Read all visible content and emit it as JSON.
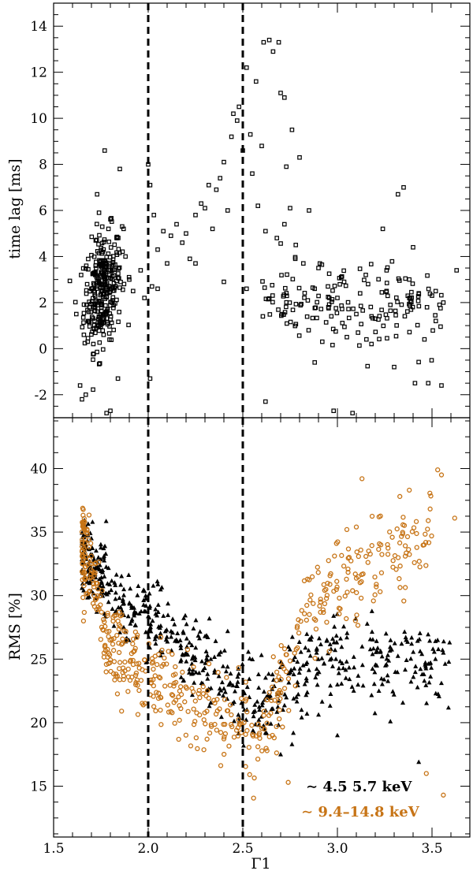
{
  "chart_data": {
    "type": "scatter",
    "x": {
      "label": "Γ1",
      "range": [
        1.5,
        3.7
      ],
      "ticks": [
        1.5,
        2.0,
        2.5,
        3.0,
        3.5
      ],
      "tick_labels": [
        "1.5",
        "2.0",
        "2.5",
        "3.0",
        "3.5"
      ]
    },
    "vlines": [
      2.0,
      2.5
    ],
    "colors": {
      "black": "#000000",
      "orange": "#c77416"
    },
    "panels": [
      {
        "name": "top",
        "ylabel": "time lag [ms]",
        "ylim": [
          -3,
          15
        ],
        "yticks": [
          -2,
          0,
          2,
          4,
          6,
          8,
          10,
          12,
          14
        ],
        "ytick_labels": [
          "-2",
          "0",
          "2",
          "4",
          "6",
          "8",
          "10",
          "12",
          "14"
        ],
        "series": [
          {
            "marker": "square",
            "color": "#000000",
            "points": [
              [
                1.62,
                1.5
              ],
              [
                1.64,
                -1.6
              ],
              [
                1.65,
                -2.2
              ],
              [
                1.66,
                0.6
              ],
              [
                1.67,
                -2.0
              ],
              [
                1.68,
                0.3
              ],
              [
                1.69,
                1.8
              ],
              [
                1.7,
                2.6
              ],
              [
                1.71,
                0.2
              ],
              [
                1.72,
                3.2
              ],
              [
                1.73,
                6.7
              ],
              [
                1.74,
                5.9
              ],
              [
                1.75,
                3.8
              ],
              [
                1.76,
                4.2
              ],
              [
                1.77,
                8.6
              ],
              [
                1.78,
                -2.8
              ],
              [
                1.79,
                5.2
              ],
              [
                1.8,
                -2.7
              ],
              [
                1.84,
                -1.3
              ],
              [
                1.85,
                7.8
              ],
              [
                1.87,
                5.2
              ],
              [
                1.88,
                4.0
              ],
              [
                1.9,
                3.0
              ],
              [
                1.92,
                2.5
              ],
              [
                1.96,
                3.4
              ],
              [
                1.98,
                2.2
              ],
              [
                2.01,
                7.1
              ],
              [
                2.03,
                5.8
              ],
              [
                2.05,
                4.3
              ],
              [
                2.08,
                5.1
              ],
              [
                2.1,
                3.7
              ],
              [
                2.12,
                4.9
              ],
              [
                2.15,
                5.4
              ],
              [
                2.18,
                4.6
              ],
              [
                2.2,
                5.0
              ],
              [
                2.22,
                3.9
              ],
              [
                2.25,
                5.8
              ],
              [
                2.28,
                6.3
              ],
              [
                2.3,
                6.1
              ],
              [
                2.32,
                7.1
              ],
              [
                2.34,
                5.2
              ],
              [
                2.36,
                6.9
              ],
              [
                2.38,
                7.4
              ],
              [
                2.4,
                8.1
              ],
              [
                2.42,
                6.0
              ],
              [
                2.44,
                9.2
              ],
              [
                2.45,
                10.2
              ],
              [
                2.47,
                9.9
              ],
              [
                2.48,
                10.5
              ],
              [
                2.5,
                8.6
              ],
              [
                2.52,
                12.2
              ],
              [
                2.54,
                9.3
              ],
              [
                2.55,
                7.6
              ],
              [
                2.57,
                11.6
              ],
              [
                2.58,
                6.2
              ],
              [
                2.6,
                8.8
              ],
              [
                2.61,
                13.3
              ],
              [
                2.62,
                5.1
              ],
              [
                2.64,
                13.4
              ],
              [
                2.66,
                12.9
              ],
              [
                2.68,
                4.8
              ],
              [
                2.69,
                13.3
              ],
              [
                2.7,
                11.1
              ],
              [
                2.72,
                10.9
              ],
              [
                2.73,
                7.9
              ],
              [
                2.75,
                6.1
              ],
              [
                2.76,
                9.5
              ],
              [
                2.78,
                4.5
              ],
              [
                2.8,
                8.3
              ],
              [
                2.82,
                3.7
              ],
              [
                2.85,
                6.0
              ],
              [
                2.88,
                2.6
              ],
              [
                2.9,
                3.5
              ],
              [
                2.92,
                0.3
              ],
              [
                2.95,
                2.7
              ],
              [
                2.98,
                -2.7
              ],
              [
                3.0,
                2.2
              ],
              [
                3.02,
                3.1
              ],
              [
                3.05,
                0.5
              ],
              [
                3.08,
                -2.8
              ],
              [
                3.1,
                1.5
              ],
              [
                3.12,
                2.4
              ],
              [
                3.15,
                3.2
              ],
              [
                3.18,
                0.2
              ],
              [
                3.2,
                1.3
              ],
              [
                3.24,
                5.2
              ],
              [
                3.26,
                2.5
              ],
              [
                3.28,
                1.9
              ],
              [
                3.3,
                -0.8
              ],
              [
                3.32,
                6.7
              ],
              [
                3.35,
                7.0
              ],
              [
                3.38,
                2.2
              ],
              [
                3.4,
                4.4
              ],
              [
                3.41,
                -1.5
              ],
              [
                3.43,
                2.4
              ],
              [
                3.46,
                0.4
              ],
              [
                3.48,
                -1.5
              ],
              [
                3.5,
                2.3
              ],
              [
                3.52,
                1.2
              ],
              [
                3.55,
                -1.6
              ],
              [
                3.56,
                2.0
              ],
              [
                3.63,
                3.4
              ],
              [
                2.0,
                8.0
              ],
              [
                2.01,
                -1.3
              ],
              [
                2.02,
                2.7
              ],
              [
                2.05,
                2.6
              ],
              [
                2.25,
                3.7
              ],
              [
                2.4,
                2.9
              ],
              [
                2.52,
                2.6
              ],
              [
                2.62,
                -2.3
              ],
              [
                2.72,
                5.4
              ],
              [
                2.88,
                -0.6
              ],
              [
                3.26,
                3.4
              ],
              [
                3.38,
                3.0
              ]
            ],
            "cluster": {
              "center": [
                1.76,
                2.6
              ],
              "spread": [
                0.05,
                1.2
              ],
              "count": 300
            },
            "band": {
              "x_range": [
                2.6,
                3.55
              ],
              "y_center": 1.8,
              "y_spread": 0.9,
              "count": 160
            }
          }
        ]
      },
      {
        "name": "bottom",
        "ylabel": "RMS [%]",
        "ylim": [
          11,
          44
        ],
        "yticks": [
          15,
          20,
          25,
          30,
          35,
          40
        ],
        "ytick_labels": [
          "15",
          "20",
          "25",
          "30",
          "35",
          "40"
        ],
        "series": [
          {
            "name": "~4.5 5.7 keV",
            "marker": "triangle",
            "color": "#000000",
            "trend": [
              [
                1.65,
                33.5
              ],
              [
                1.75,
                31.5
              ],
              [
                1.85,
                29.0
              ],
              [
                2.0,
                27.8
              ],
              [
                2.2,
                25.8
              ],
              [
                2.4,
                23.2
              ],
              [
                2.5,
                21.5
              ],
              [
                2.6,
                21.5
              ],
              [
                2.8,
                24.2
              ],
              [
                3.0,
                24.8
              ],
              [
                3.3,
                25.0
              ],
              [
                3.6,
                24.5
              ]
            ],
            "spread": 1.6,
            "count": 620,
            "outliers": [
              [
                2.7,
                17.5
              ],
              [
                3.0,
                19.0
              ],
              [
                3.43,
                16.9
              ],
              [
                3.52,
                22.3
              ],
              [
                3.56,
                25.5
              ],
              [
                2.98,
                28.4
              ],
              [
                3.05,
                26.7
              ],
              [
                3.28,
                20.1
              ],
              [
                2.42,
                27.2
              ],
              [
                2.3,
                26.8
              ],
              [
                2.62,
                19.2
              ],
              [
                2.76,
                18.3
              ]
            ]
          },
          {
            "name": "~9.4–14.8 keV",
            "marker": "circle",
            "color": "#c77416",
            "trend": [
              [
                1.65,
                34.0
              ],
              [
                1.72,
                31.0
              ],
              [
                1.8,
                26.0
              ],
              [
                1.9,
                24.5
              ],
              [
                2.0,
                23.5
              ],
              [
                2.2,
                22.0
              ],
              [
                2.4,
                20.5
              ],
              [
                2.5,
                19.5
              ],
              [
                2.55,
                19.0
              ],
              [
                2.62,
                19.5
              ],
              [
                2.7,
                23.0
              ],
              [
                2.8,
                27.5
              ],
              [
                2.9,
                29.5
              ],
              [
                3.0,
                30.5
              ],
              [
                3.15,
                31.5
              ],
              [
                3.3,
                33.0
              ],
              [
                3.5,
                34.5
              ]
            ],
            "spread": 1.7,
            "count": 560,
            "outliers": [
              [
                3.13,
                39.2
              ],
              [
                3.33,
                37.8
              ],
              [
                3.38,
                38.3
              ],
              [
                3.53,
                39.9
              ],
              [
                3.55,
                39.5
              ],
              [
                3.62,
                36.1
              ],
              [
                3.47,
                16.0
              ],
              [
                3.56,
                14.3
              ],
              [
                2.74,
                15.3
              ],
              [
                3.48,
                35.9
              ],
              [
                3.22,
                36.2
              ],
              [
                3.05,
                35.2
              ],
              [
                3.1,
                35.4
              ]
            ]
          }
        ]
      }
    ],
    "legend": {
      "placement": "bottom-right",
      "entries": [
        {
          "text": "∼ 4.5  5.7 keV",
          "color": "#000000"
        },
        {
          "text": "∼ 9.4–14.8 keV",
          "color": "#c77416"
        }
      ]
    }
  }
}
